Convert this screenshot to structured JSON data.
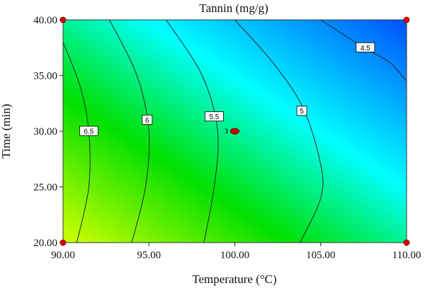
{
  "chart_data": {
    "type": "contour",
    "title": "Tannin (mg/g)",
    "xlabel": "Temperature (°C)",
    "ylabel": "Time (min)",
    "xlim": [
      90.0,
      110.0
    ],
    "ylim": [
      20.0,
      40.0
    ],
    "x_ticks": [
      "90.00",
      "95.00",
      "100.00",
      "105.00",
      "110.00"
    ],
    "y_ticks": [
      "20.00",
      "25.00",
      "30.00",
      "35.00",
      "40.00"
    ],
    "colormap": [
      "#d4ff00",
      "#00e000",
      "#00ffff",
      "#0050ff"
    ],
    "contours": [
      {
        "level": "6.5",
        "points": [
          [
            90.0,
            38.0
          ],
          [
            91.0,
            34.0
          ],
          [
            91.5,
            30.0
          ],
          [
            91.5,
            25.0
          ],
          [
            90.8,
            20.0
          ]
        ],
        "label_at": [
          91.5,
          30.0
        ]
      },
      {
        "level": "6",
        "points": [
          [
            92.7,
            40.0
          ],
          [
            94.3,
            35.0
          ],
          [
            95.0,
            30.0
          ],
          [
            94.8,
            25.0
          ],
          [
            94.0,
            20.0
          ]
        ],
        "label_at": [
          94.9,
          31.0
        ]
      },
      {
        "level": "5.5",
        "points": [
          [
            96.0,
            40.0
          ],
          [
            98.1,
            35.0
          ],
          [
            99.0,
            30.0
          ],
          [
            98.8,
            25.0
          ],
          [
            98.2,
            20.0
          ]
        ],
        "label_at": [
          98.8,
          31.3
        ]
      },
      {
        "level": "5",
        "points": [
          [
            100.0,
            40.0
          ],
          [
            102.3,
            36.0
          ],
          [
            104.0,
            32.0
          ],
          [
            105.0,
            27.0
          ],
          [
            105.0,
            24.0
          ],
          [
            103.8,
            20.0
          ]
        ],
        "label_at": [
          103.9,
          31.8
        ]
      },
      {
        "level": "4.5",
        "points": [
          [
            105.0,
            40.0
          ],
          [
            106.5,
            38.5
          ],
          [
            107.5,
            37.5
          ],
          [
            109.0,
            36.2
          ],
          [
            110.0,
            34.5
          ]
        ],
        "label_at": [
          107.6,
          37.5
        ]
      }
    ],
    "center_point": {
      "x": 100.0,
      "y": 30.0,
      "label": "3",
      "color": "#cc0000"
    },
    "design_points": [
      [
        90.0,
        20.0
      ],
      [
        90.0,
        40.0
      ],
      [
        110.0,
        20.0
      ],
      [
        110.0,
        40.0
      ]
    ],
    "point_color": "#dd0000"
  }
}
